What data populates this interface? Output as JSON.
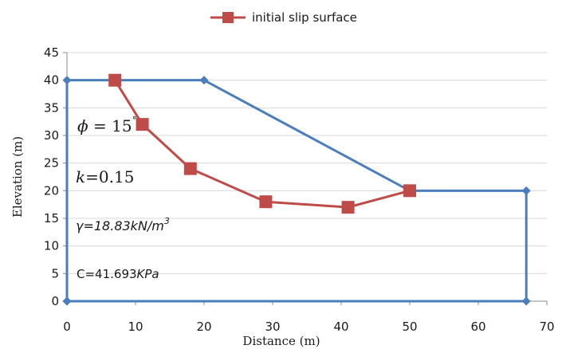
{
  "chart_data": {
    "type": "line",
    "xlabel": "Distance (m)",
    "ylabel": "Elevation (m)",
    "xlim": [
      0,
      70
    ],
    "ylim": [
      0,
      45
    ],
    "x_ticks": [
      "0",
      "10",
      "20",
      "30",
      "40",
      "50",
      "60",
      "70"
    ],
    "y_ticks": [
      "0",
      "5",
      "10",
      "15",
      "20",
      "25",
      "30",
      "35",
      "40",
      "45"
    ],
    "grid": "horizontal",
    "legend_position": "top-center",
    "series": [
      {
        "color": "#4a7ebb",
        "marker": "diamond",
        "points": [
          [
            0,
            0
          ],
          [
            0,
            40
          ],
          [
            20,
            40
          ],
          [
            50,
            20
          ],
          [
            67,
            20
          ],
          [
            67,
            0
          ],
          [
            0,
            0
          ]
        ]
      },
      {
        "name": "initial slip surface",
        "color": "#be4b48",
        "marker": "square",
        "points": [
          [
            7,
            40
          ],
          [
            11,
            32
          ],
          [
            18,
            24
          ],
          [
            29,
            18
          ],
          [
            41,
            17
          ],
          [
            50,
            20
          ]
        ]
      }
    ],
    "annotations": {
      "phi": {
        "symbol": "ϕ",
        "equals": " = ",
        "value": "15",
        "superscript": "°"
      },
      "k": {
        "symbol": "k",
        "rest": "=0.15"
      },
      "gamma": {
        "main": "γ=18.83kN/m",
        "superscript": "3"
      },
      "c": {
        "prefix": "C=41.693",
        "unit": "KPa"
      }
    }
  }
}
